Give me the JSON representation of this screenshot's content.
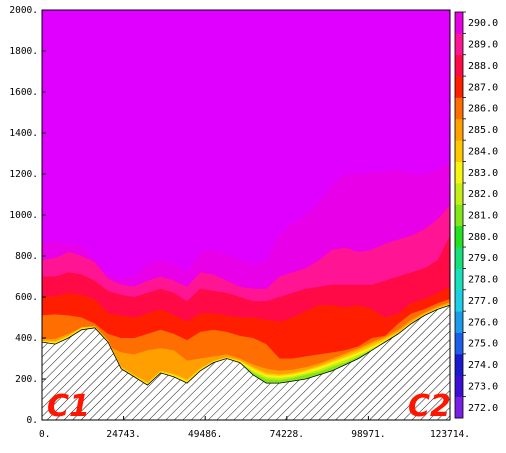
{
  "chart_data": {
    "type": "area",
    "title": "",
    "xlabel": "",
    "ylabel": "",
    "xlim": [
      0,
      123714
    ],
    "ylim": [
      0,
      2000
    ],
    "x_ticks": [
      "0.",
      "24743.",
      "49486.",
      "74228.",
      "98971.",
      "123714."
    ],
    "y_ticks": [
      "0.",
      "200.",
      "400.",
      "600.",
      "800.",
      "1000.",
      "1200.",
      "1400.",
      "1600.",
      "1800.",
      "2000."
    ],
    "endpoint_labels": [
      "C1",
      "C2"
    ],
    "colorbar": {
      "levels": [
        {
          "label": "272.0",
          "color": "#7a1fe6"
        },
        {
          "label": "273.0",
          "color": "#3b0fd6"
        },
        {
          "label": "274.0",
          "color": "#1a1acf"
        },
        {
          "label": "275.0",
          "color": "#1c5ee8"
        },
        {
          "label": "276.0",
          "color": "#1c9bea"
        },
        {
          "label": "277.0",
          "color": "#1ccfe6"
        },
        {
          "label": "278.0",
          "color": "#19e0bc"
        },
        {
          "label": "279.0",
          "color": "#15e07a"
        },
        {
          "label": "280.0",
          "color": "#22e022"
        },
        {
          "label": "281.0",
          "color": "#82e619"
        },
        {
          "label": "282.0",
          "color": "#c4ee16"
        },
        {
          "label": "283.0",
          "color": "#f5f50f"
        },
        {
          "label": "284.0",
          "color": "#ffc800"
        },
        {
          "label": "285.0",
          "color": "#ffa000"
        },
        {
          "label": "286.0",
          "color": "#ff6e00"
        },
        {
          "label": "287.0",
          "color": "#ff1e00"
        },
        {
          "label": "288.0",
          "color": "#ff0a46"
        },
        {
          "label": "289.0",
          "color": "#ff1493"
        },
        {
          "label": "290.0",
          "color": "#e800e8"
        }
      ],
      "top_color": "#e000ff"
    },
    "terrain_color": "#ffffff",
    "x": [
      0,
      4000,
      8000,
      12000,
      16000,
      20000,
      24000,
      28000,
      32000,
      36000,
      40000,
      44000,
      48000,
      52000,
      56000,
      60000,
      64000,
      68000,
      72000,
      76000,
      80000,
      84000,
      88000,
      92000,
      96000,
      100000,
      104000,
      108000,
      112000,
      116000,
      120000,
      123714
    ],
    "terrain": [
      380,
      370,
      400,
      440,
      450,
      380,
      250,
      210,
      170,
      230,
      210,
      180,
      240,
      280,
      300,
      280,
      220,
      180,
      180,
      190,
      200,
      220,
      240,
      270,
      300,
      340,
      380,
      420,
      470,
      510,
      540,
      560
    ],
    "series": [
      {
        "level": "281.0",
        "values": [
          380,
          370,
          400,
          440,
          450,
          380,
          250,
          210,
          170,
          230,
          210,
          180,
          240,
          280,
          300,
          280,
          230,
          200,
          195,
          205,
          220,
          235,
          260,
          280,
          310,
          340,
          380,
          420,
          470,
          510,
          540,
          560
        ]
      },
      {
        "level": "282.0",
        "values": [
          380,
          372,
          402,
          442,
          452,
          382,
          252,
          212,
          172,
          232,
          212,
          182,
          242,
          282,
          302,
          282,
          240,
          210,
          205,
          212,
          228,
          245,
          270,
          292,
          318,
          348,
          382,
          422,
          472,
          512,
          542,
          562
        ]
      },
      {
        "level": "283.0",
        "values": [
          385,
          378,
          408,
          448,
          455,
          385,
          255,
          215,
          178,
          236,
          218,
          190,
          248,
          286,
          305,
          288,
          250,
          220,
          215,
          222,
          238,
          258,
          282,
          305,
          330,
          358,
          390,
          425,
          475,
          515,
          545,
          565
        ]
      },
      {
        "level": "284.0",
        "values": [
          388,
          384,
          412,
          452,
          458,
          390,
          260,
          220,
          185,
          240,
          225,
          198,
          252,
          290,
          308,
          292,
          258,
          230,
          222,
          230,
          245,
          265,
          290,
          315,
          340,
          370,
          398,
          430,
          480,
          518,
          548,
          568
        ]
      },
      {
        "level": "285.0",
        "values": [
          395,
          395,
          420,
          450,
          440,
          360,
          330,
          320,
          340,
          350,
          340,
          290,
          300,
          310,
          320,
          300,
          270,
          250,
          240,
          245,
          258,
          275,
          300,
          325,
          350,
          380,
          405,
          440,
          490,
          525,
          555,
          575
        ]
      },
      {
        "level": "286.0",
        "values": [
          510,
          515,
          510,
          500,
          470,
          420,
          400,
          400,
          420,
          440,
          420,
          390,
          430,
          440,
          430,
          410,
          400,
          370,
          300,
          300,
          310,
          320,
          330,
          340,
          360,
          400,
          410,
          470,
          520,
          540,
          570,
          590
        ]
      },
      {
        "level": "287.0",
        "values": [
          600,
          605,
          620,
          610,
          590,
          520,
          510,
          500,
          520,
          540,
          510,
          480,
          520,
          520,
          510,
          500,
          500,
          490,
          480,
          500,
          530,
          560,
          560,
          550,
          560,
          540,
          500,
          520,
          570,
          590,
          620,
          650
        ]
      },
      {
        "level": "288.0",
        "values": [
          700,
          700,
          720,
          710,
          680,
          630,
          610,
          600,
          620,
          640,
          620,
          580,
          640,
          630,
          620,
          600,
          580,
          580,
          600,
          620,
          640,
          650,
          660,
          660,
          660,
          660,
          680,
          700,
          720,
          740,
          780,
          900
        ]
      },
      {
        "level": "289.0",
        "values": [
          780,
          790,
          820,
          800,
          770,
          690,
          660,
          650,
          680,
          700,
          680,
          650,
          720,
          710,
          680,
          650,
          640,
          640,
          700,
          720,
          740,
          780,
          830,
          840,
          820,
          830,
          860,
          880,
          900,
          930,
          980,
          1050
        ]
      },
      {
        "level": "290.0",
        "values": [
          860,
          870,
          860,
          850,
          780,
          710,
          690,
          700,
          760,
          780,
          760,
          720,
          820,
          830,
          810,
          780,
          760,
          780,
          910,
          960,
          1000,
          1060,
          1150,
          1200,
          1200,
          1210,
          1210,
          1220,
          1200,
          1200,
          1220,
          1260
        ]
      }
    ]
  }
}
